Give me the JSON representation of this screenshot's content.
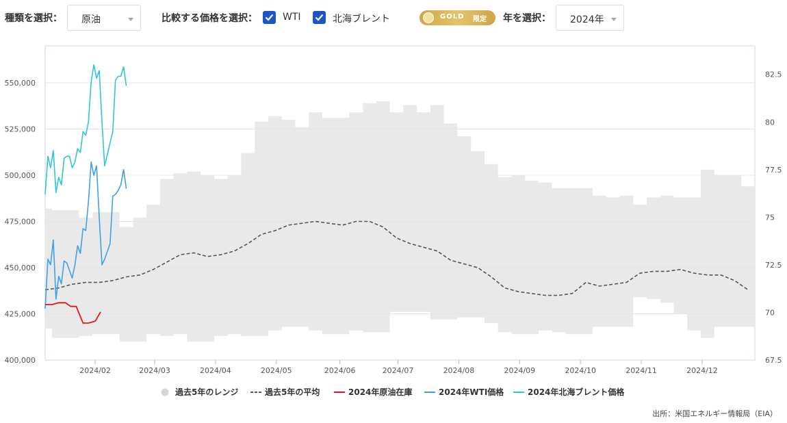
{
  "controls": {
    "type_label": "種類を選択：",
    "type_value": "原油",
    "compare_label": "比較する価格を選択：",
    "wti_label": "WTI",
    "brent_label": "北海ブレント",
    "gold_badge": "GOLD",
    "gold_badge_sub": "限定",
    "year_label": "年を選択：",
    "year_value": "2024年"
  },
  "source": "出所：米国エネルギー情報局（EIA）",
  "colors": {
    "range": "#e9e9e9",
    "avg": "#555555",
    "inventory": "#e8141c",
    "wti": "#3fa0e6",
    "brent": "#2fc4d6",
    "accent": "#1a56c8"
  },
  "chart_data": {
    "type": "line",
    "x_unit": "week",
    "x_ticks": [
      "2024/02",
      "2024/03",
      "2024/04",
      "2024/05",
      "2024/06",
      "2024/07",
      "2024/08",
      "2024/09",
      "2024/10",
      "2024/11",
      "2024/12"
    ],
    "x_tick_weeks": [
      4.7,
      9.1,
      13.6,
      18.1,
      22.8,
      27.1,
      31.6,
      36.1,
      40.6,
      45.1,
      49.6
    ],
    "x_range": [
      1,
      53.5
    ],
    "y_left": {
      "range": [
        400000,
        570000
      ],
      "ticks": [
        400000,
        425000,
        450000,
        475000,
        500000,
        525000,
        550000
      ],
      "tick_labels": [
        "400,000",
        "425,000",
        "450,000",
        "475,000",
        "500,000",
        "525,000",
        "550,000"
      ]
    },
    "y_right": {
      "range": [
        67.5,
        84.0
      ],
      "ticks": [
        67.5,
        70,
        72.5,
        75,
        77.5,
        80,
        82.5
      ],
      "tick_labels": [
        "67.5",
        "70",
        "72.5",
        "75",
        "77.5",
        "80",
        "82.5"
      ]
    },
    "grid": true,
    "legend_position": "bottom",
    "legend": [
      "過去5年のレンジ",
      "過去5年の平均",
      "2024年原油在庫",
      "2024年WTI価格",
      "2024年北海ブレント価格"
    ],
    "series": [
      {
        "name": "過去5年のレンジ",
        "axis": "left",
        "weeks": [
          1,
          2,
          3,
          4,
          5,
          6,
          7,
          8,
          9,
          10,
          11,
          12,
          13,
          14,
          15,
          16,
          17,
          18,
          19,
          20,
          21,
          22,
          23,
          24,
          25,
          26,
          27,
          28,
          29,
          30,
          31,
          32,
          33,
          34,
          35,
          36,
          37,
          38,
          39,
          40,
          41,
          42,
          43,
          44,
          45,
          46,
          47,
          48,
          49,
          50,
          51,
          52,
          53
        ],
        "high": [
          482000,
          481000,
          481000,
          477000,
          480000,
          480000,
          472000,
          477000,
          484000,
          498000,
          501000,
          502000,
          500000,
          498000,
          500000,
          512000,
          529000,
          532000,
          530000,
          526000,
          534000,
          531000,
          531000,
          534000,
          539000,
          540000,
          534000,
          538000,
          534000,
          538000,
          528000,
          521000,
          513000,
          506000,
          499000,
          500000,
          497000,
          496000,
          493000,
          493000,
          493000,
          489000,
          488000,
          489000,
          484000,
          488000,
          489000,
          488000,
          488000,
          503000,
          500000,
          500000,
          494000
        ],
        "low": [
          417000,
          412000,
          412000,
          413000,
          414000,
          414000,
          410000,
          410000,
          414000,
          413000,
          414000,
          410000,
          410000,
          413000,
          414000,
          413000,
          413000,
          416000,
          418000,
          418000,
          416000,
          414000,
          414000,
          416000,
          415000,
          415000,
          426000,
          426000,
          426000,
          422000,
          422000,
          423000,
          423000,
          420000,
          415000,
          414000,
          414000,
          416000,
          415000,
          414000,
          414000,
          418000,
          418000,
          418000,
          434000,
          433000,
          431000,
          425000,
          416000,
          412000,
          418000,
          418000,
          418000
        ]
      },
      {
        "name": "過去5年の平均",
        "axis": "left",
        "weeks": [
          1,
          2,
          3,
          4,
          5,
          6,
          7,
          8,
          9,
          10,
          11,
          12,
          13,
          14,
          15,
          16,
          17,
          18,
          19,
          20,
          21,
          22,
          23,
          24,
          25,
          26,
          27,
          28,
          29,
          30,
          31,
          32,
          33,
          34,
          35,
          36,
          37,
          38,
          39,
          40,
          41,
          42,
          43,
          44,
          45,
          46,
          47,
          48,
          49,
          50,
          51,
          52,
          53
        ],
        "values": [
          438000,
          439000,
          441000,
          442000,
          442000,
          443000,
          445000,
          446000,
          449000,
          453000,
          457000,
          458000,
          456000,
          457000,
          459000,
          463000,
          468000,
          470000,
          473000,
          474000,
          475000,
          474000,
          473000,
          475000,
          475000,
          472000,
          466000,
          463000,
          461000,
          459000,
          454000,
          452000,
          450000,
          445000,
          439000,
          437000,
          436000,
          435000,
          435000,
          436000,
          442000,
          440000,
          441000,
          442000,
          447000,
          448000,
          448000,
          449000,
          447000,
          446000,
          446000,
          443000,
          438000
        ]
      },
      {
        "name": "2024年原油在庫",
        "axis": "left",
        "weeks": [
          1,
          1.5,
          2,
          2.5,
          2.9,
          3.3,
          3.8,
          4.2,
          4.7,
          5.1
        ],
        "values": [
          430000,
          430000,
          431000,
          431000,
          429000,
          429000,
          420000,
          420000,
          421000,
          426000
        ]
      },
      {
        "name": "2024年WTI価格",
        "axis": "right",
        "weeks": [
          1,
          1.2,
          1.4,
          1.6,
          1.8,
          2.0,
          2.2,
          2.4,
          2.6,
          2.8,
          3.0,
          3.2,
          3.4,
          3.6,
          3.8,
          4.0,
          4.2,
          4.4,
          4.6,
          4.8,
          5.0,
          5.2,
          5.4,
          5.6,
          5.8,
          6.0,
          6.2,
          6.4,
          6.6,
          6.8,
          7.0
        ],
        "values": [
          70.2,
          72.8,
          72.5,
          73.8,
          70.7,
          71.9,
          71.5,
          72.7,
          72.6,
          72.2,
          71.8,
          72.5,
          73.5,
          73.1,
          74.4,
          74.3,
          75.8,
          77.9,
          77.2,
          77.7,
          75.0,
          72.5,
          72.8,
          73.2,
          73.6,
          76.1,
          76.2,
          76.4,
          76.7,
          77.5,
          76.5
        ]
      },
      {
        "name": "2024年北海ブレント価格",
        "axis": "right",
        "weeks": [
          1,
          1.2,
          1.4,
          1.6,
          1.8,
          2.0,
          2.2,
          2.4,
          2.6,
          2.8,
          3.0,
          3.2,
          3.4,
          3.6,
          3.8,
          4.0,
          4.2,
          4.4,
          4.6,
          4.8,
          5.0,
          5.2,
          5.4,
          5.6,
          5.8,
          6.0,
          6.2,
          6.4,
          6.6,
          6.8,
          7.0
        ],
        "values": [
          76.2,
          78.2,
          77.6,
          78.5,
          76.3,
          77.1,
          76.7,
          78.1,
          78.2,
          78.2,
          77.6,
          77.9,
          78.6,
          78.4,
          79.5,
          79.3,
          80.0,
          82.1,
          83.0,
          82.3,
          82.7,
          80.0,
          77.7,
          78.3,
          78.9,
          79.5,
          82.2,
          82.4,
          82.4,
          82.9,
          81.9
        ]
      }
    ]
  }
}
